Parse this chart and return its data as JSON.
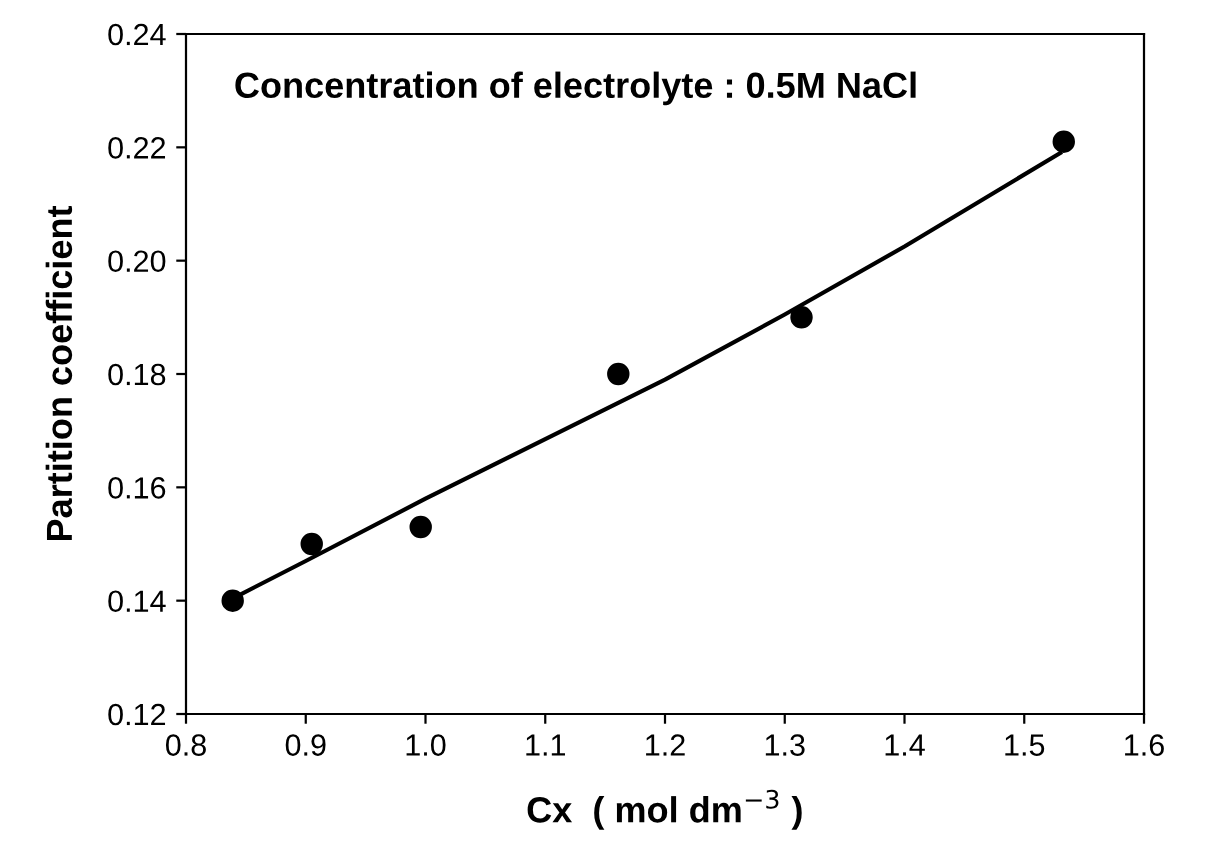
{
  "chart_data": {
    "type": "scatter",
    "xlabel": "Cx  ( mol dm$^{−3}$ )",
    "ylabel": "Partition coefficient",
    "annotations": [
      "Concentration of electrolyte : 0.5M NaCl"
    ],
    "series": [
      {
        "color": "#000000",
        "marker": "circle",
        "x": [
          0.839,
          0.905,
          0.996,
          1.161,
          1.314,
          1.533
        ],
        "values": [
          0.14,
          0.15,
          0.153,
          0.18,
          0.19,
          0.221
        ]
      },
      {
        "type": "line",
        "color": "#000000",
        "marker": "none",
        "x": [
          0.84,
          0.9,
          1.0,
          1.1,
          1.2,
          1.3,
          1.4,
          1.53
        ],
        "values": [
          0.1405,
          0.147,
          0.158,
          0.1685,
          0.179,
          0.1905,
          0.2025,
          0.219
        ]
      }
    ],
    "xlim": [
      0.8,
      1.6
    ],
    "xticks": [
      {
        "value": 0.8,
        "label": "0.8"
      },
      {
        "value": 0.9,
        "label": "0.9"
      },
      {
        "value": 1.0,
        "label": "1.0"
      },
      {
        "value": 1.1,
        "label": "1.1"
      },
      {
        "value": 1.2,
        "label": "1.2"
      },
      {
        "value": 1.3,
        "label": "1.3"
      },
      {
        "value": 1.4,
        "label": "1.4"
      },
      {
        "value": 1.5,
        "label": "1.5"
      },
      {
        "value": 1.6,
        "label": "1.6"
      }
    ],
    "ylim": [
      0.12,
      0.24
    ],
    "yticks": [
      {
        "value": 0.12,
        "label": "0.12"
      },
      {
        "value": 0.14,
        "label": "0.14"
      },
      {
        "value": 0.16,
        "label": "0.16"
      },
      {
        "value": 0.18,
        "label": "0.18"
      },
      {
        "value": 0.2,
        "label": "0.20"
      },
      {
        "value": 0.22,
        "label": "0.22"
      },
      {
        "value": 0.24,
        "label": "0.24"
      }
    ],
    "grid": false,
    "legend": false
  }
}
